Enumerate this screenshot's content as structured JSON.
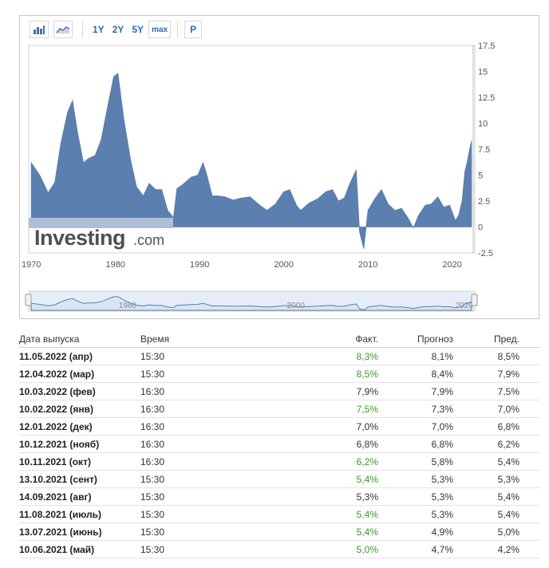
{
  "toolbar": {
    "icons": [
      "bar-chart-icon",
      "area-chart-icon"
    ],
    "ranges": [
      "1Y",
      "2Y",
      "5Y",
      "max"
    ],
    "p_label": "P"
  },
  "watermark": {
    "brand": "Investing",
    "suffix": ".com"
  },
  "chart_data": {
    "type": "area",
    "title": "",
    "xlabel": "",
    "ylabel": "",
    "x_ticks": [
      "1970",
      "1980",
      "1990",
      "2000",
      "2010",
      "2020"
    ],
    "y_ticks": [
      "17.5",
      "15",
      "12.5",
      "10",
      "7.5",
      "5",
      "2.5",
      "0",
      "-2.5"
    ],
    "xlim": [
      1969.7,
      2022.5
    ],
    "ylim": [
      -2.5,
      17.5
    ],
    "grid": false,
    "color": "#5b7fae",
    "series": [
      {
        "x": [
          1970.0,
          1971.0,
          1972.0,
          1972.8,
          1973.5,
          1974.3,
          1974.9,
          1975.5,
          1976.2,
          1976.8,
          1977.6,
          1978.3,
          1979.0,
          1979.8,
          1980.3,
          1981.0,
          1981.8,
          1982.5,
          1983.3,
          1984.0,
          1984.8,
          1985.5,
          1986.2,
          1986.9,
          1987.3,
          1988.0,
          1989.0,
          1989.8,
          1990.4,
          1990.8,
          1991.5,
          1992.2,
          1993.0,
          1994.0,
          1995.0,
          1996.0,
          1997.0,
          1998.0,
          1999.0,
          2000.0,
          2000.7,
          2001.5,
          2002.0,
          2003.0,
          2004.0,
          2005.0,
          2005.8,
          2006.5,
          2007.2,
          2007.8,
          2008.6,
          2009.0,
          2009.5,
          2010.0,
          2010.8,
          2011.6,
          2012.4,
          2013.2,
          2014.0,
          2014.8,
          2015.4,
          2016.0,
          2016.8,
          2017.5,
          2018.3,
          2019.0,
          2019.7,
          2020.4,
          2020.8,
          2021.2,
          2021.5,
          2021.8,
          2022.1,
          2022.3
        ],
        "values": [
          6.2,
          5.0,
          3.3,
          4.3,
          8.0,
          11.0,
          12.2,
          9.1,
          6.2,
          6.6,
          6.9,
          8.4,
          11.3,
          14.5,
          14.8,
          10.4,
          6.5,
          3.9,
          3.0,
          4.2,
          3.6,
          3.6,
          1.6,
          0.9,
          3.7,
          4.1,
          4.8,
          5.0,
          6.2,
          5.2,
          3.0,
          3.0,
          2.9,
          2.6,
          2.8,
          2.9,
          2.2,
          1.6,
          2.2,
          3.4,
          3.6,
          2.1,
          1.6,
          2.3,
          2.7,
          3.4,
          3.6,
          2.5,
          2.8,
          4.1,
          5.5,
          -0.5,
          -2.1,
          1.6,
          2.7,
          3.6,
          2.2,
          1.6,
          1.8,
          0.8,
          -0.1,
          1.1,
          2.1,
          2.2,
          2.9,
          1.9,
          2.1,
          0.6,
          1.2,
          2.6,
          5.3,
          6.3,
          7.6,
          8.3
        ]
      }
    ],
    "navigator": {
      "labels": [
        "1980",
        "2000",
        "2020"
      ]
    }
  },
  "table": {
    "headers": {
      "date": "Дата выпуска",
      "time": "Время",
      "actual": "Факт.",
      "forecast": "Прогноз",
      "previous": "Пред."
    },
    "rows": [
      {
        "date": "11.05.2022 (апр)",
        "time": "15:30",
        "actual": "8,3%",
        "forecast": "8,1%",
        "previous": "8,5%",
        "color": "#3a9a23"
      },
      {
        "date": "12.04.2022 (мар)",
        "time": "15:30",
        "actual": "8,5%",
        "forecast": "8,4%",
        "previous": "7,9%",
        "color": "#3a9a23"
      },
      {
        "date": "10.03.2022 (фев)",
        "time": "16:30",
        "actual": "7,9%",
        "forecast": "7,9%",
        "previous": "7,5%",
        "color": "#333333"
      },
      {
        "date": "10.02.2022 (янв)",
        "time": "16:30",
        "actual": "7,5%",
        "forecast": "7,3%",
        "previous": "7,0%",
        "color": "#3a9a23"
      },
      {
        "date": "12.01.2022 (дек)",
        "time": "16:30",
        "actual": "7,0%",
        "forecast": "7,0%",
        "previous": "6,8%",
        "color": "#333333"
      },
      {
        "date": "10.12.2021 (нояб)",
        "time": "16:30",
        "actual": "6,8%",
        "forecast": "6,8%",
        "previous": "6,2%",
        "color": "#333333"
      },
      {
        "date": "10.11.2021 (окт)",
        "time": "16:30",
        "actual": "6,2%",
        "forecast": "5,8%",
        "previous": "5,4%",
        "color": "#3a9a23"
      },
      {
        "date": "13.10.2021 (сент)",
        "time": "15:30",
        "actual": "5,4%",
        "forecast": "5,3%",
        "previous": "5,3%",
        "color": "#3a9a23"
      },
      {
        "date": "14.09.2021 (авг)",
        "time": "15:30",
        "actual": "5,3%",
        "forecast": "5,3%",
        "previous": "5,4%",
        "color": "#333333"
      },
      {
        "date": "11.08.2021 (июль)",
        "time": "15:30",
        "actual": "5,4%",
        "forecast": "5,3%",
        "previous": "5,4%",
        "color": "#3a9a23"
      },
      {
        "date": "13.07.2021 (июнь)",
        "time": "15:30",
        "actual": "5,4%",
        "forecast": "4,9%",
        "previous": "5,0%",
        "color": "#3a9a23"
      },
      {
        "date": "10.06.2021 (май)",
        "time": "15:30",
        "actual": "5,0%",
        "forecast": "4,7%",
        "previous": "4,2%",
        "color": "#3a9a23"
      }
    ]
  }
}
